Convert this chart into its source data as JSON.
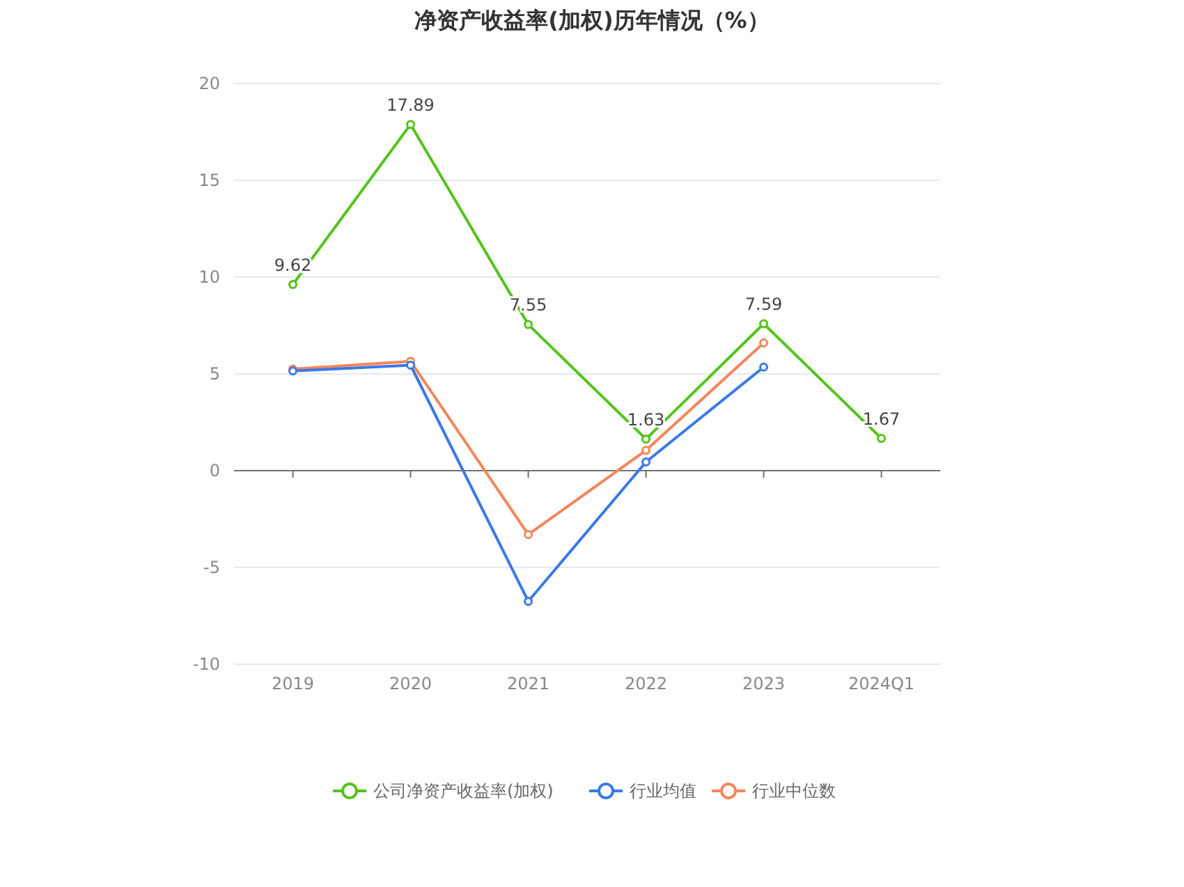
{
  "chart_data": {
    "type": "line",
    "title": "净资产收益率(加权)历年情况（%）",
    "categories": [
      "2019",
      "2020",
      "2021",
      "2022",
      "2023",
      "2024Q1"
    ],
    "series": [
      {
        "name": "公司净资产收益率(加权)",
        "color": "#52c41a",
        "values": [
          9.62,
          17.89,
          7.55,
          1.63,
          7.59,
          1.67
        ],
        "value_labels": [
          "9.62",
          "17.89",
          "7.55",
          "1.63",
          "7.59",
          "1.67"
        ]
      },
      {
        "name": "行业均值",
        "color": "#3a78e8",
        "values": [
          5.15,
          5.45,
          -6.75,
          0.45,
          5.35,
          null
        ]
      },
      {
        "name": "行业中位数",
        "color": "#f5855b",
        "values": [
          5.25,
          5.65,
          -3.3,
          1.05,
          6.6,
          null
        ]
      }
    ],
    "ylim": [
      -10,
      20
    ],
    "yticks": [
      -10,
      -5,
      0,
      5,
      10,
      15,
      20
    ],
    "grid": "y",
    "legend": "bottom",
    "marker": "circle",
    "line_style": "solid"
  }
}
